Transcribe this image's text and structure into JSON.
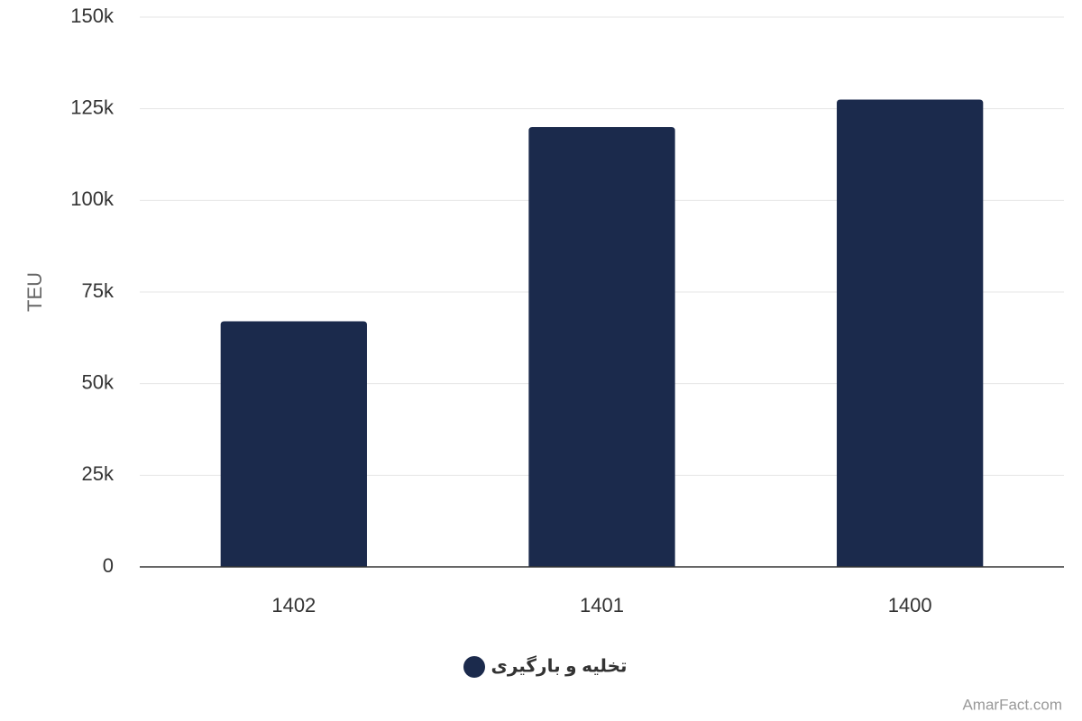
{
  "chart_data": {
    "type": "bar",
    "y_label": "TEU",
    "categories": [
      "1402",
      "1401",
      "1400"
    ],
    "series": [
      {
        "name": "تخلیه و بارگیری",
        "color": "#1b2a4c",
        "values": [
          67000,
          120000,
          127500
        ]
      }
    ],
    "ylim": [
      0,
      150000
    ],
    "yticks": [
      0,
      {
        "value": 25000,
        "label": "25k"
      },
      {
        "value": 50000,
        "label": "50k"
      },
      {
        "value": 75000,
        "label": "75k"
      },
      {
        "value": 100000,
        "label": "100k"
      },
      {
        "value": 125000,
        "label": "125k"
      },
      {
        "value": 150000,
        "label": "150k"
      }
    ],
    "grid": true,
    "credit": "AmarFact.com"
  }
}
